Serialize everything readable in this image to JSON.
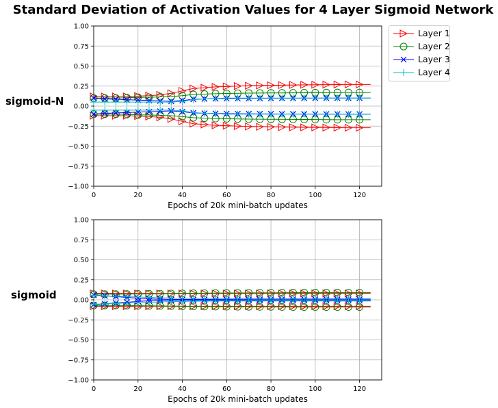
{
  "title": "Standard Deviation of Activation Values for 4 Layer Sigmoid Network",
  "legend": {
    "placement": "outside upper right",
    "items": [
      {
        "label": "Layer 1",
        "color": "#ff0000",
        "marker": "triangle-right"
      },
      {
        "label": "Layer 2",
        "color": "#008000",
        "marker": "circle"
      },
      {
        "label": "Layer 3",
        "color": "#0000ff",
        "marker": "x"
      },
      {
        "label": "Layer 4",
        "color": "#00bfbf",
        "marker": "plus"
      }
    ]
  },
  "chart_data": [
    {
      "type": "line",
      "row_label": "sigmoid-N",
      "xlabel": "Epochs of 20k mini-batch updates",
      "ylabel": "",
      "xlim": [
        0,
        130
      ],
      "ylim": [
        -1.0,
        1.0
      ],
      "xticks": [
        0,
        20,
        40,
        60,
        80,
        100,
        120
      ],
      "yticks": [
        "1.00",
        "0.75",
        "0.50",
        "0.25",
        "0.00",
        "−0.25",
        "−0.50",
        "−0.75",
        "−1.00"
      ],
      "grid": true,
      "x": [
        0,
        5,
        10,
        15,
        20,
        25,
        30,
        35,
        40,
        45,
        50,
        55,
        60,
        65,
        70,
        75,
        80,
        85,
        90,
        95,
        100,
        105,
        110,
        115,
        120
      ],
      "series": [
        {
          "name": "Layer 1",
          "mirrored": true,
          "values": [
            0.12,
            0.12,
            0.12,
            0.12,
            0.125,
            0.13,
            0.14,
            0.16,
            0.19,
            0.22,
            0.23,
            0.24,
            0.245,
            0.25,
            0.255,
            0.258,
            0.26,
            0.262,
            0.264,
            0.266,
            0.267,
            0.268,
            0.269,
            0.27,
            0.27
          ]
        },
        {
          "name": "Layer 2",
          "mirrored": true,
          "values": [
            0.1,
            0.1,
            0.1,
            0.105,
            0.11,
            0.11,
            0.115,
            0.12,
            0.13,
            0.145,
            0.15,
            0.155,
            0.158,
            0.16,
            0.162,
            0.163,
            0.164,
            0.165,
            0.166,
            0.167,
            0.168,
            0.169,
            0.17,
            0.17,
            0.17
          ]
        },
        {
          "name": "Layer 3",
          "mirrored": true,
          "values": [
            0.1,
            0.09,
            0.085,
            0.08,
            0.075,
            0.07,
            0.065,
            0.06,
            0.07,
            0.085,
            0.09,
            0.092,
            0.094,
            0.095,
            0.096,
            0.097,
            0.097,
            0.098,
            0.098,
            0.099,
            0.099,
            0.1,
            0.1,
            0.1,
            0.1
          ]
        },
        {
          "name": "Layer 4",
          "mirrored": true,
          "values": [
            0.05,
            0.05,
            0.05,
            0.05,
            0.05,
            0.05,
            0.05,
            0.05,
            0.06,
            0.08,
            0.09,
            0.095,
            0.1,
            0.1,
            0.1,
            0.1,
            0.1,
            0.1,
            0.1,
            0.1,
            0.1,
            0.1,
            0.1,
            0.1,
            0.1
          ]
        }
      ]
    },
    {
      "type": "line",
      "row_label": "sigmoid",
      "xlabel": "Epochs of 20k mini-batch updates",
      "ylabel": "",
      "xlim": [
        0,
        130
      ],
      "ylim": [
        -1.0,
        1.0
      ],
      "xticks": [
        0,
        20,
        40,
        60,
        80,
        100,
        120
      ],
      "yticks": [
        "1.00",
        "0.75",
        "0.50",
        "0.25",
        "0.00",
        "−0.25",
        "−0.50",
        "−0.75",
        "−1.00"
      ],
      "grid": true,
      "x": [
        0,
        5,
        10,
        15,
        20,
        25,
        30,
        35,
        40,
        45,
        50,
        55,
        60,
        65,
        70,
        75,
        80,
        85,
        90,
        95,
        100,
        105,
        110,
        115,
        120
      ],
      "series": [
        {
          "name": "Layer 1",
          "mirrored": true,
          "values": [
            0.08,
            0.08,
            0.08,
            0.08,
            0.08,
            0.08,
            0.08,
            0.08,
            0.08,
            0.08,
            0.08,
            0.08,
            0.08,
            0.08,
            0.08,
            0.08,
            0.08,
            0.08,
            0.08,
            0.08,
            0.08,
            0.08,
            0.08,
            0.08,
            0.08
          ]
        },
        {
          "name": "Layer 2",
          "mirrored": true,
          "values": [
            0.07,
            0.07,
            0.07,
            0.072,
            0.074,
            0.075,
            0.076,
            0.078,
            0.08,
            0.082,
            0.083,
            0.084,
            0.085,
            0.086,
            0.087,
            0.088,
            0.088,
            0.089,
            0.09,
            0.09,
            0.09,
            0.09,
            0.09,
            0.09,
            0.09
          ]
        },
        {
          "name": "Layer 3",
          "mirrored": true,
          "values": [
            0.06,
            0.05,
            0.04,
            0.03,
            0.02,
            0.012,
            0.008,
            0.005,
            0.004,
            0.004,
            0.004,
            0.005,
            0.005,
            0.006,
            0.006,
            0.007,
            0.007,
            0.007,
            0.008,
            0.008,
            0.008,
            0.008,
            0.008,
            0.008,
            0.008
          ]
        },
        {
          "name": "Layer 4",
          "mirrored": true,
          "values": [
            0.055,
            0.05,
            0.045,
            0.04,
            0.035,
            0.03,
            0.026,
            0.022,
            0.02,
            0.018,
            0.017,
            0.016,
            0.015,
            0.015,
            0.015,
            0.015,
            0.015,
            0.015,
            0.015,
            0.015,
            0.015,
            0.015,
            0.015,
            0.015,
            0.015
          ]
        }
      ]
    }
  ]
}
